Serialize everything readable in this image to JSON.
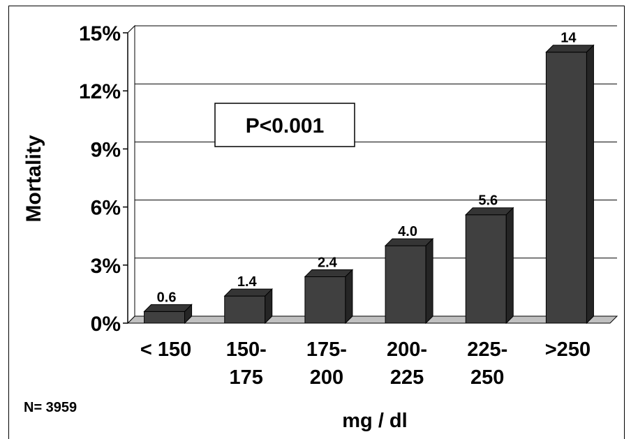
{
  "chart_data": {
    "type": "bar",
    "categories": [
      [
        "< 150"
      ],
      [
        "150-",
        "175"
      ],
      [
        "175-",
        "200"
      ],
      [
        "200-",
        "225"
      ],
      [
        "225-",
        "250"
      ],
      [
        ">250"
      ]
    ],
    "values": [
      0.6,
      1.4,
      2.4,
      4.0,
      5.6,
      14
    ],
    "value_labels": [
      "0.6",
      "1.4",
      "2.4",
      "4.0",
      "5.6",
      "14"
    ],
    "ylabel": "Mortality",
    "xlabel": "mg / dl",
    "ylim": [
      0,
      15
    ],
    "yticks": [
      0,
      3,
      6,
      9,
      12,
      15
    ],
    "ytick_labels": [
      "0%",
      "3%",
      "6%",
      "9%",
      "12%",
      "15%"
    ],
    "grid": true,
    "bar_color": "#404040",
    "annotation": "P<0.001",
    "footnote": "N= 3959"
  }
}
